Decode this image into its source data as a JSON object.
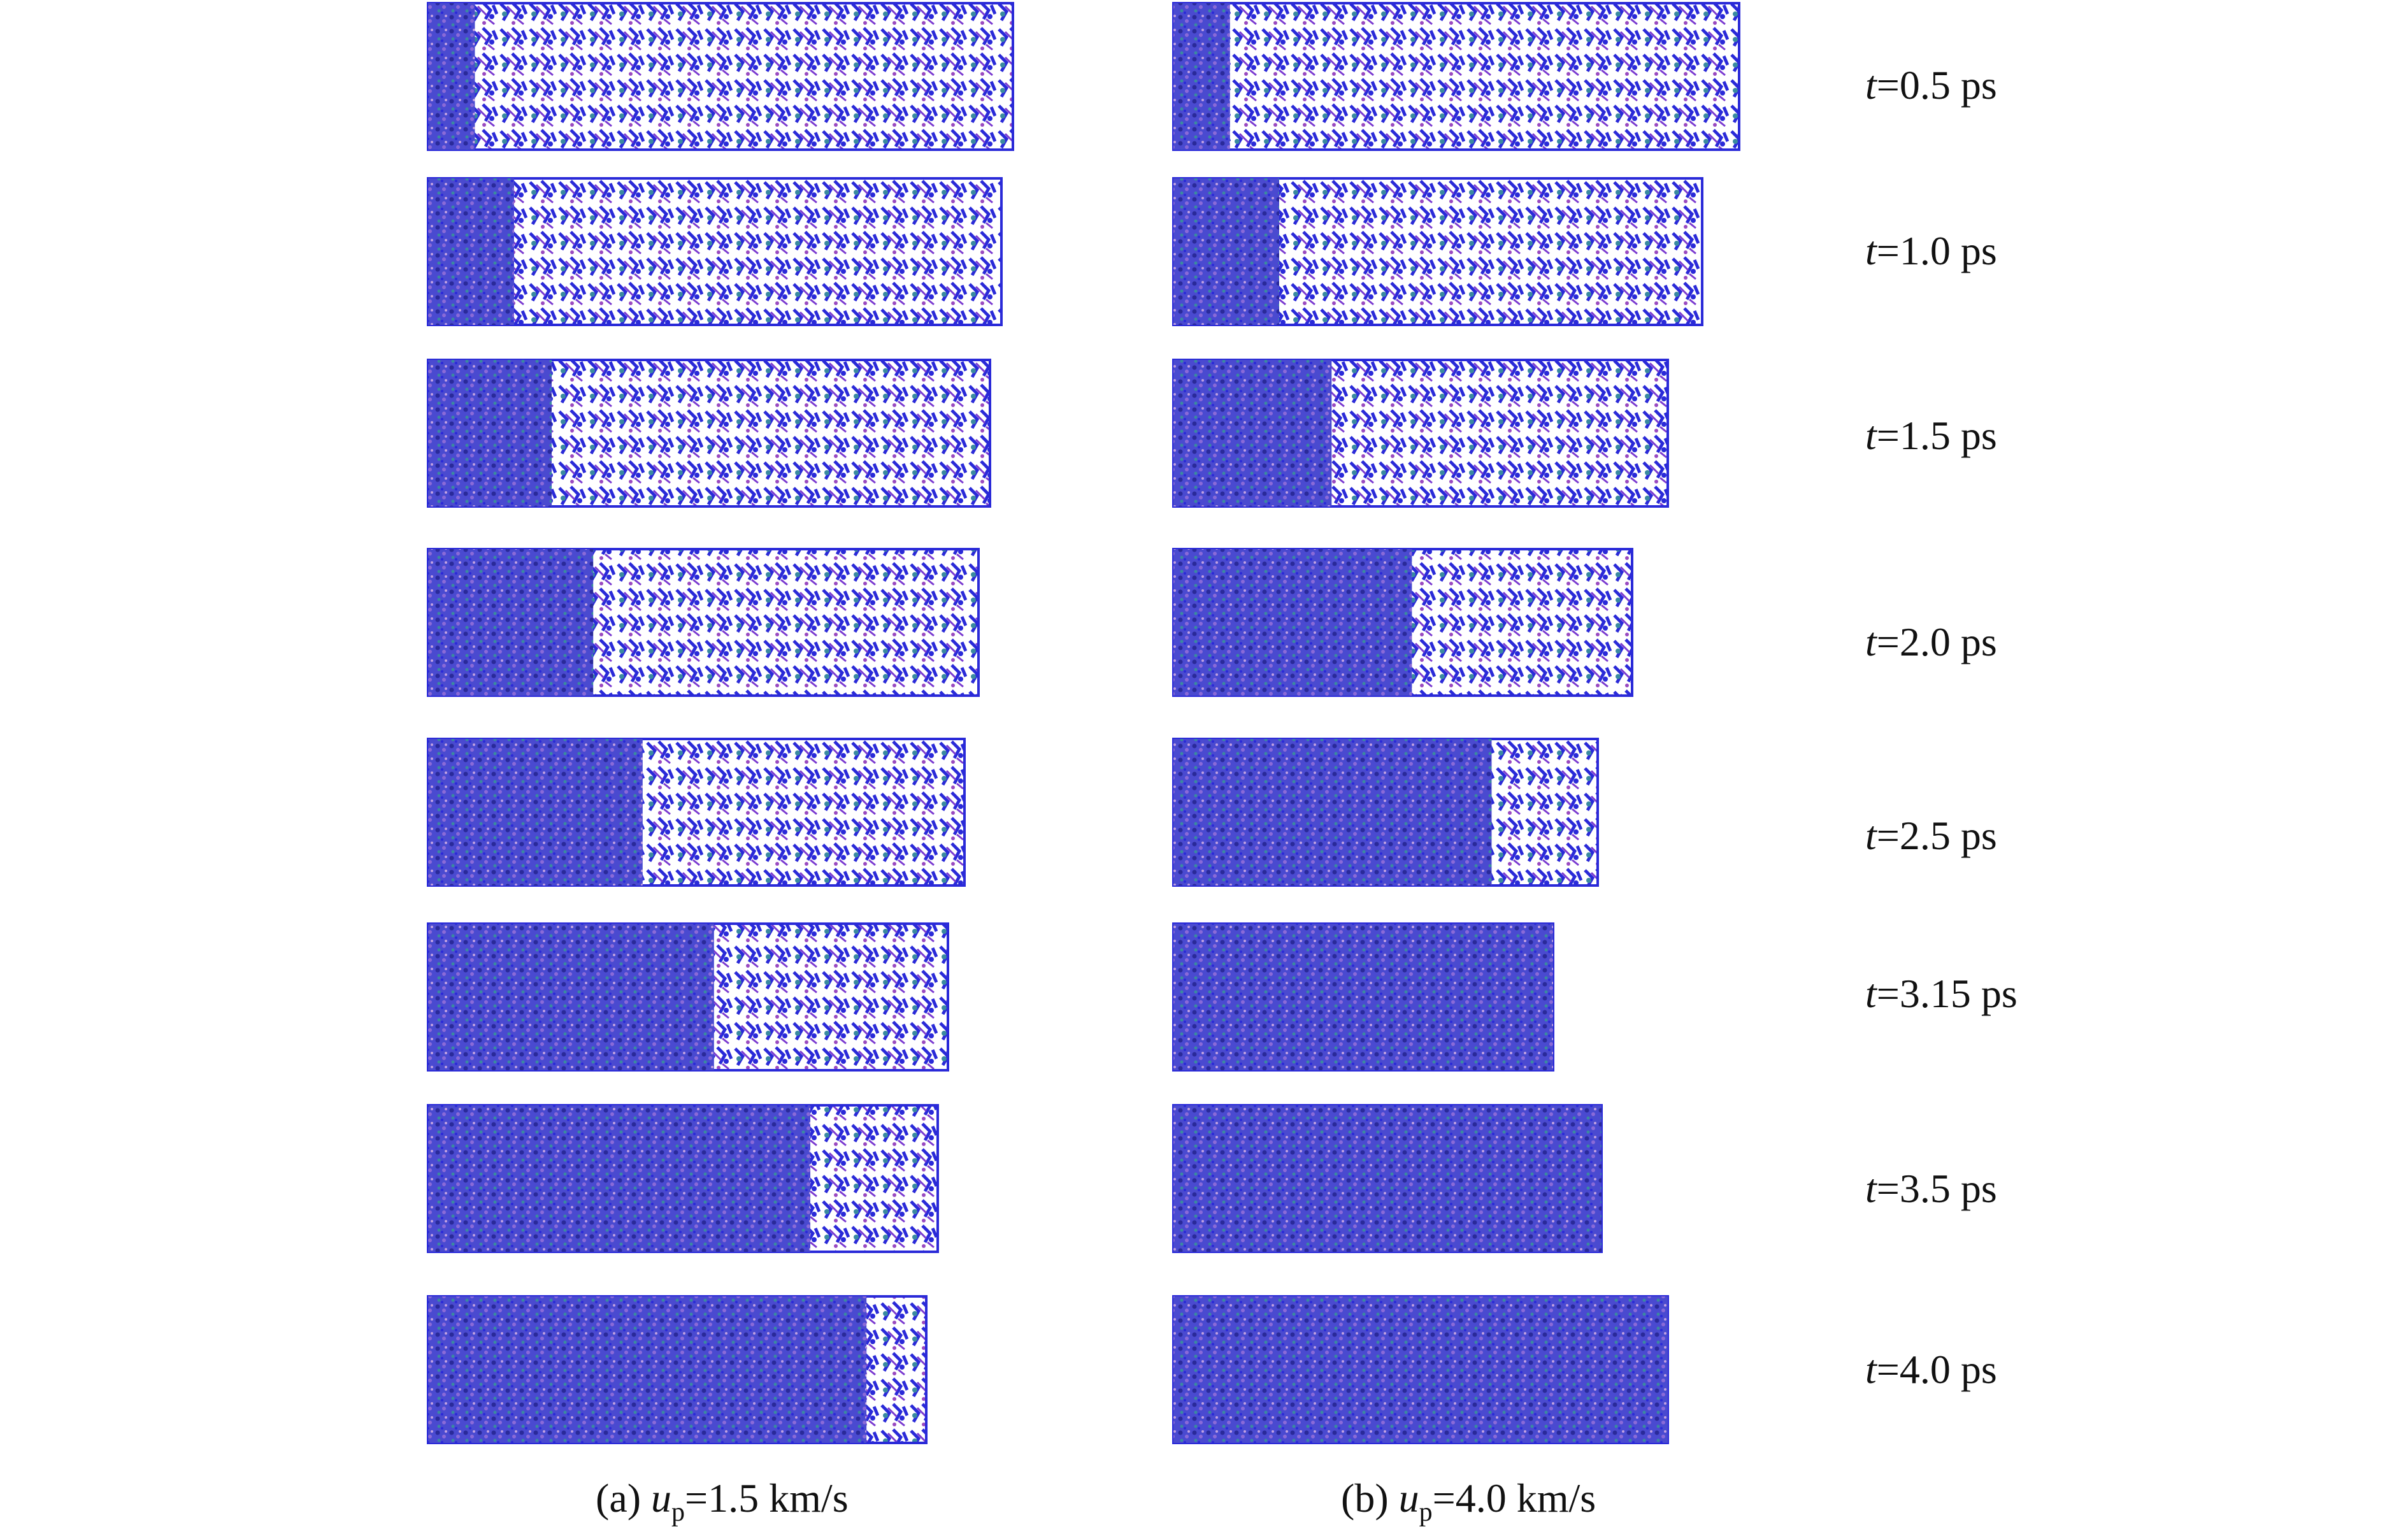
{
  "figure": {
    "time_labels": [
      {
        "var": "t",
        "rest": "=0.5 ps"
      },
      {
        "var": "t",
        "rest": "=1.0 ps"
      },
      {
        "var": "t",
        "rest": "=1.5 ps"
      },
      {
        "var": "t",
        "rest": "=2.0 ps"
      },
      {
        "var": "t",
        "rest": "=2.5 ps"
      },
      {
        "var": "t",
        "rest": "=3.15 ps"
      },
      {
        "var": "t",
        "rest": "=3.5 ps"
      },
      {
        "var": "t",
        "rest": "=4.0 ps"
      }
    ],
    "captions": [
      {
        "prefix": "(a) ",
        "var": "u",
        "sub": "p",
        "rest": "=1.5 km/s"
      },
      {
        "prefix": "(b) ",
        "var": "u",
        "sub": "p",
        "rest": "=4.0 km/s"
      }
    ],
    "colors": {
      "atom_primary": "#2a2ad8",
      "atom_secondary": "#7a3ad0",
      "atom_tertiary": "#3a8aa0",
      "dense_fill": "#4a4ad0",
      "background": "#ffffff"
    },
    "panels": {
      "a": {
        "compressed_fraction": [
          0.08,
          0.15,
          0.22,
          0.3,
          0.4,
          0.55,
          0.75,
          0.88
        ]
      },
      "b": {
        "compressed_fraction": [
          0.1,
          0.2,
          0.32,
          0.52,
          0.75,
          1.0,
          1.0,
          1.0
        ]
      }
    }
  }
}
